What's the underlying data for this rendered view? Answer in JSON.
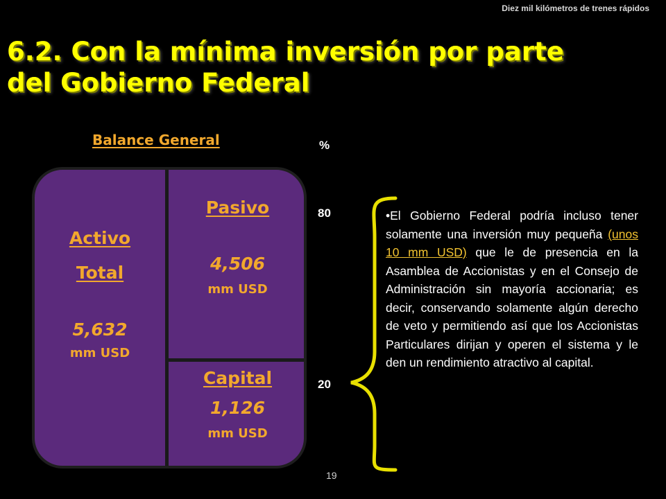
{
  "header": {
    "note": "Diez mil kilómetros de trenes rápidos"
  },
  "title": {
    "line1": "6.2.  Con la mínima inversión por parte",
    "line2": "del Gobierno Federal"
  },
  "balance": {
    "heading": "Balance General",
    "activo": {
      "label1": "Activo",
      "label2": "Total",
      "value": "5,632",
      "unit": "mm USD"
    },
    "pasivo": {
      "label": "Pasivo",
      "value": "4,506",
      "unit": "mm USD"
    },
    "capital": {
      "label": "Capital",
      "value": "1,126",
      "unit": "mm USD"
    }
  },
  "percent": {
    "unit": "%",
    "high": "80",
    "low": "20"
  },
  "body": {
    "pre": "•El Gobierno Federal podría incluso tener solamente una inversión muy pequeña ",
    "highlight": "(unos 10 mm USD)",
    "post": " que le de presencia en la Asamblea de Accionistas y en el Consejo de Administración sin mayoría accionaria; es decir, conservando solamente algún derecho de veto y permitiendo así que los Accionistas Particulares dirijan y operen el sistema y le den un rendimiento atractivo al capital."
  },
  "page_number": "19",
  "colors": {
    "title": "#ffff00",
    "accent": "#f2a82d",
    "box": "#5b2a7c",
    "brace": "#e8e000"
  }
}
